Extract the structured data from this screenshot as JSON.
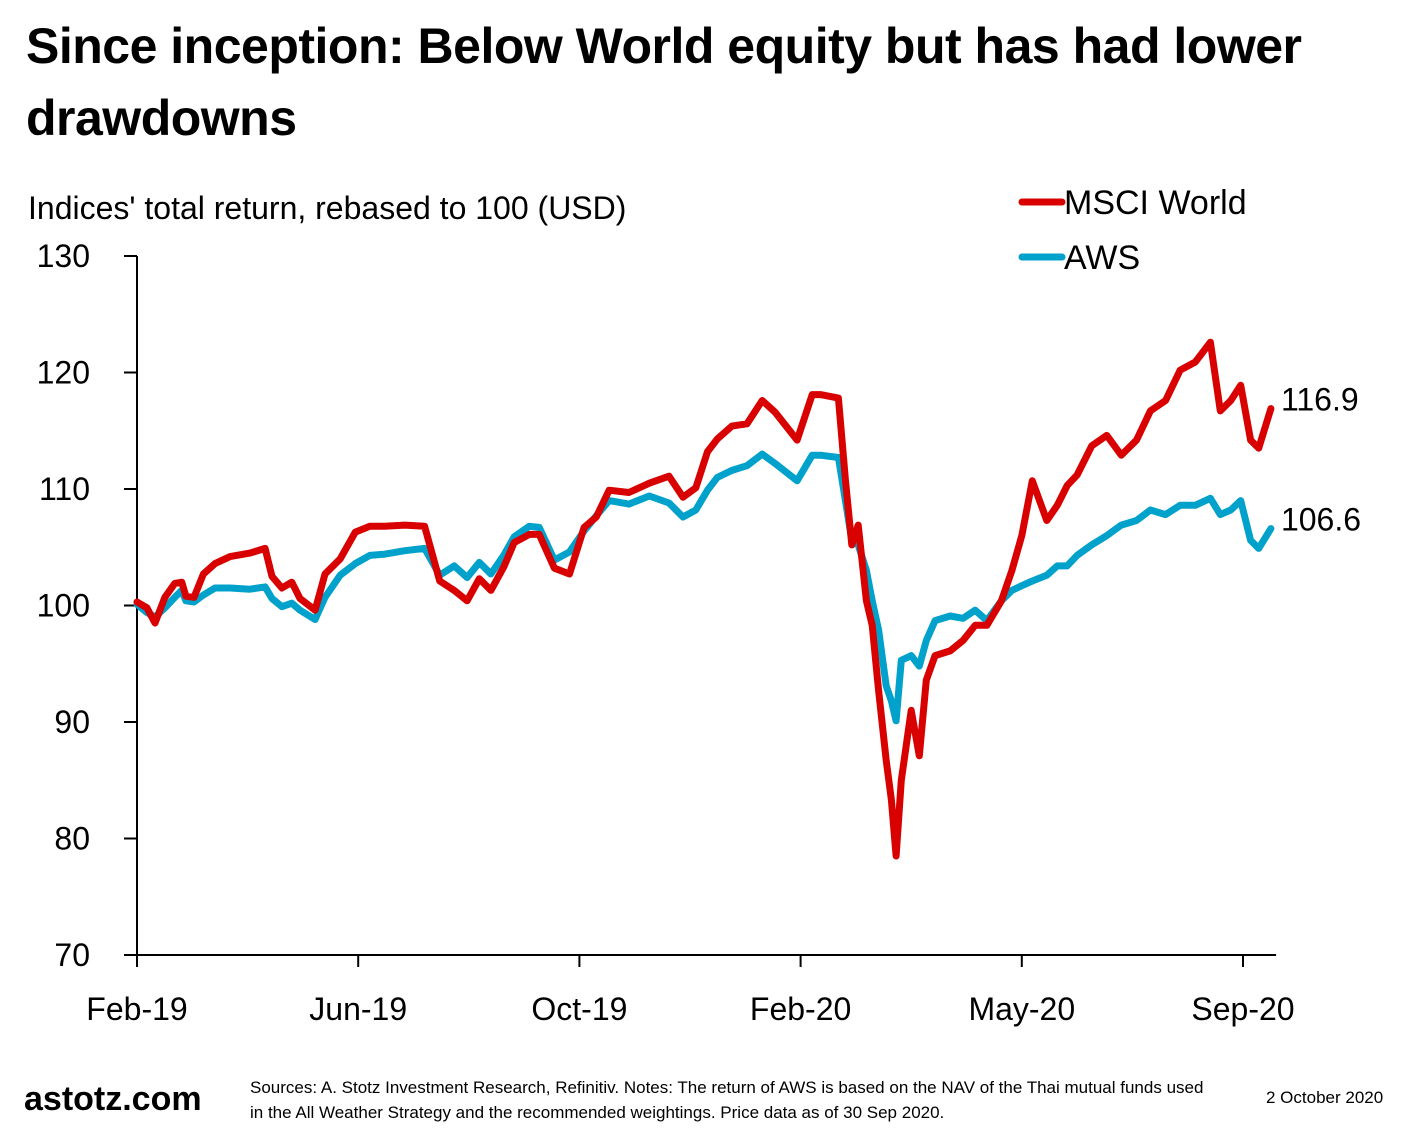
{
  "header": {
    "title": "Since inception: Below World equity but has had lower drawdowns",
    "subtitle": "Indices' total return, rebased to 100 (USD)"
  },
  "footer": {
    "brand": "astotz.com",
    "note": "Sources: A. Stotz Investment Research, Refinitiv. Notes: The return of AWS is based on the NAV of the Thai mutual funds used in the All Weather Strategy and the recommended weightings. Price data as of 30 Sep 2020.",
    "date": "2 October 2020"
  },
  "chart_data": {
    "type": "line",
    "title": "Since inception: Below World equity but has had lower drawdowns",
    "subtitle": "Indices' total return, rebased to 100 (USD)",
    "xlabel": "",
    "ylabel": "",
    "x_unit": "months since Feb-2019",
    "x_range": [
      0,
      19.5
    ],
    "ylim": [
      70,
      130
    ],
    "y_ticks": [
      70,
      80,
      90,
      100,
      110,
      120,
      130
    ],
    "x_ticks": [
      {
        "label": "Feb-19",
        "x": 0
      },
      {
        "label": "Jun-19",
        "x": 3.8
      },
      {
        "label": "Oct-19",
        "x": 7.6
      },
      {
        "label": "Feb-20",
        "x": 11.4
      },
      {
        "label": "May-20",
        "x": 15.2
      },
      {
        "label": "Sep-20",
        "x": 19.0
      }
    ],
    "grid": false,
    "legend_position": "top-right",
    "x": [
      0.0,
      0.17,
      0.31,
      0.48,
      0.65,
      0.77,
      0.84,
      0.98,
      1.14,
      1.34,
      1.6,
      1.94,
      2.2,
      2.32,
      2.49,
      2.66,
      2.8,
      3.06,
      3.23,
      3.49,
      3.75,
      4.0,
      4.25,
      4.6,
      4.94,
      5.2,
      5.45,
      5.67,
      5.88,
      6.08,
      6.3,
      6.48,
      6.74,
      6.91,
      7.17,
      7.43,
      7.68,
      7.89,
      8.11,
      8.45,
      8.8,
      9.14,
      9.38,
      9.6,
      9.8,
      9.97,
      10.22,
      10.48,
      10.74,
      10.96,
      11.34,
      11.6,
      11.74,
      12.05,
      12.17,
      12.28,
      12.39,
      12.53,
      12.63,
      12.74,
      12.87,
      12.96,
      13.04,
      13.13,
      13.3,
      13.44,
      13.56,
      13.71,
      13.97,
      14.19,
      14.4,
      14.6,
      14.85,
      15.03,
      15.2,
      15.38,
      15.63,
      15.81,
      15.98,
      16.15,
      16.4,
      16.66,
      16.91,
      17.17,
      17.41,
      17.67,
      17.92,
      18.18,
      18.44,
      18.61,
      18.79,
      18.96,
      19.13,
      19.27,
      19.48
    ],
    "series": [
      {
        "name": "MSCI World",
        "color": "#d90000",
        "end_label": "116.9",
        "values": [
          100.3,
          99.8,
          98.5,
          100.7,
          101.9,
          102.0,
          100.8,
          100.7,
          102.7,
          103.6,
          104.2,
          104.5,
          104.9,
          102.5,
          101.5,
          102.0,
          100.6,
          99.6,
          102.7,
          104.0,
          106.3,
          106.8,
          106.8,
          106.9,
          106.8,
          102.1,
          101.3,
          100.4,
          102.3,
          101.3,
          103.3,
          105.4,
          106.1,
          106.1,
          103.2,
          102.7,
          106.7,
          107.6,
          109.9,
          109.7,
          110.5,
          111.1,
          109.3,
          110.1,
          113.2,
          114.3,
          115.4,
          115.6,
          117.6,
          116.6,
          114.2,
          118.1,
          118.1,
          117.8,
          110.8,
          105.2,
          106.9,
          100.4,
          98.3,
          92.7,
          86.7,
          83.3,
          78.5,
          85.0,
          91.0,
          87.1,
          93.6,
          95.7,
          96.1,
          97.0,
          98.3,
          98.3,
          100.4,
          103.0,
          106.0,
          110.7,
          107.3,
          108.6,
          110.3,
          111.2,
          113.7,
          114.6,
          112.9,
          114.2,
          116.7,
          117.6,
          120.2,
          120.9,
          122.6,
          116.7,
          117.6,
          118.9,
          114.2,
          113.5,
          116.9
        ]
      },
      {
        "name": "AWS",
        "color": "#00a2cc",
        "end_label": "106.6",
        "values": [
          100.1,
          99.4,
          99.0,
          99.8,
          100.7,
          101.3,
          100.4,
          100.3,
          100.9,
          101.5,
          101.5,
          101.4,
          101.6,
          100.6,
          99.9,
          100.2,
          99.6,
          98.8,
          100.7,
          102.6,
          103.6,
          104.3,
          104.4,
          104.7,
          104.9,
          102.6,
          103.4,
          102.4,
          103.7,
          102.7,
          104.3,
          105.9,
          106.8,
          106.7,
          103.9,
          104.6,
          106.4,
          107.7,
          109.0,
          108.7,
          109.4,
          108.8,
          107.6,
          108.2,
          109.9,
          111.0,
          111.6,
          112.0,
          113.0,
          112.2,
          110.7,
          112.9,
          112.9,
          112.7,
          109.0,
          105.6,
          105.2,
          103.0,
          100.4,
          97.9,
          93.1,
          91.8,
          90.1,
          95.3,
          95.7,
          94.8,
          97.0,
          98.7,
          99.1,
          98.9,
          99.6,
          98.7,
          100.4,
          101.3,
          101.7,
          102.1,
          102.6,
          103.4,
          103.4,
          104.3,
          105.2,
          106.0,
          106.9,
          107.3,
          108.2,
          107.8,
          108.6,
          108.6,
          109.2,
          107.8,
          108.2,
          109.0,
          105.6,
          104.9,
          106.6
        ]
      }
    ]
  }
}
